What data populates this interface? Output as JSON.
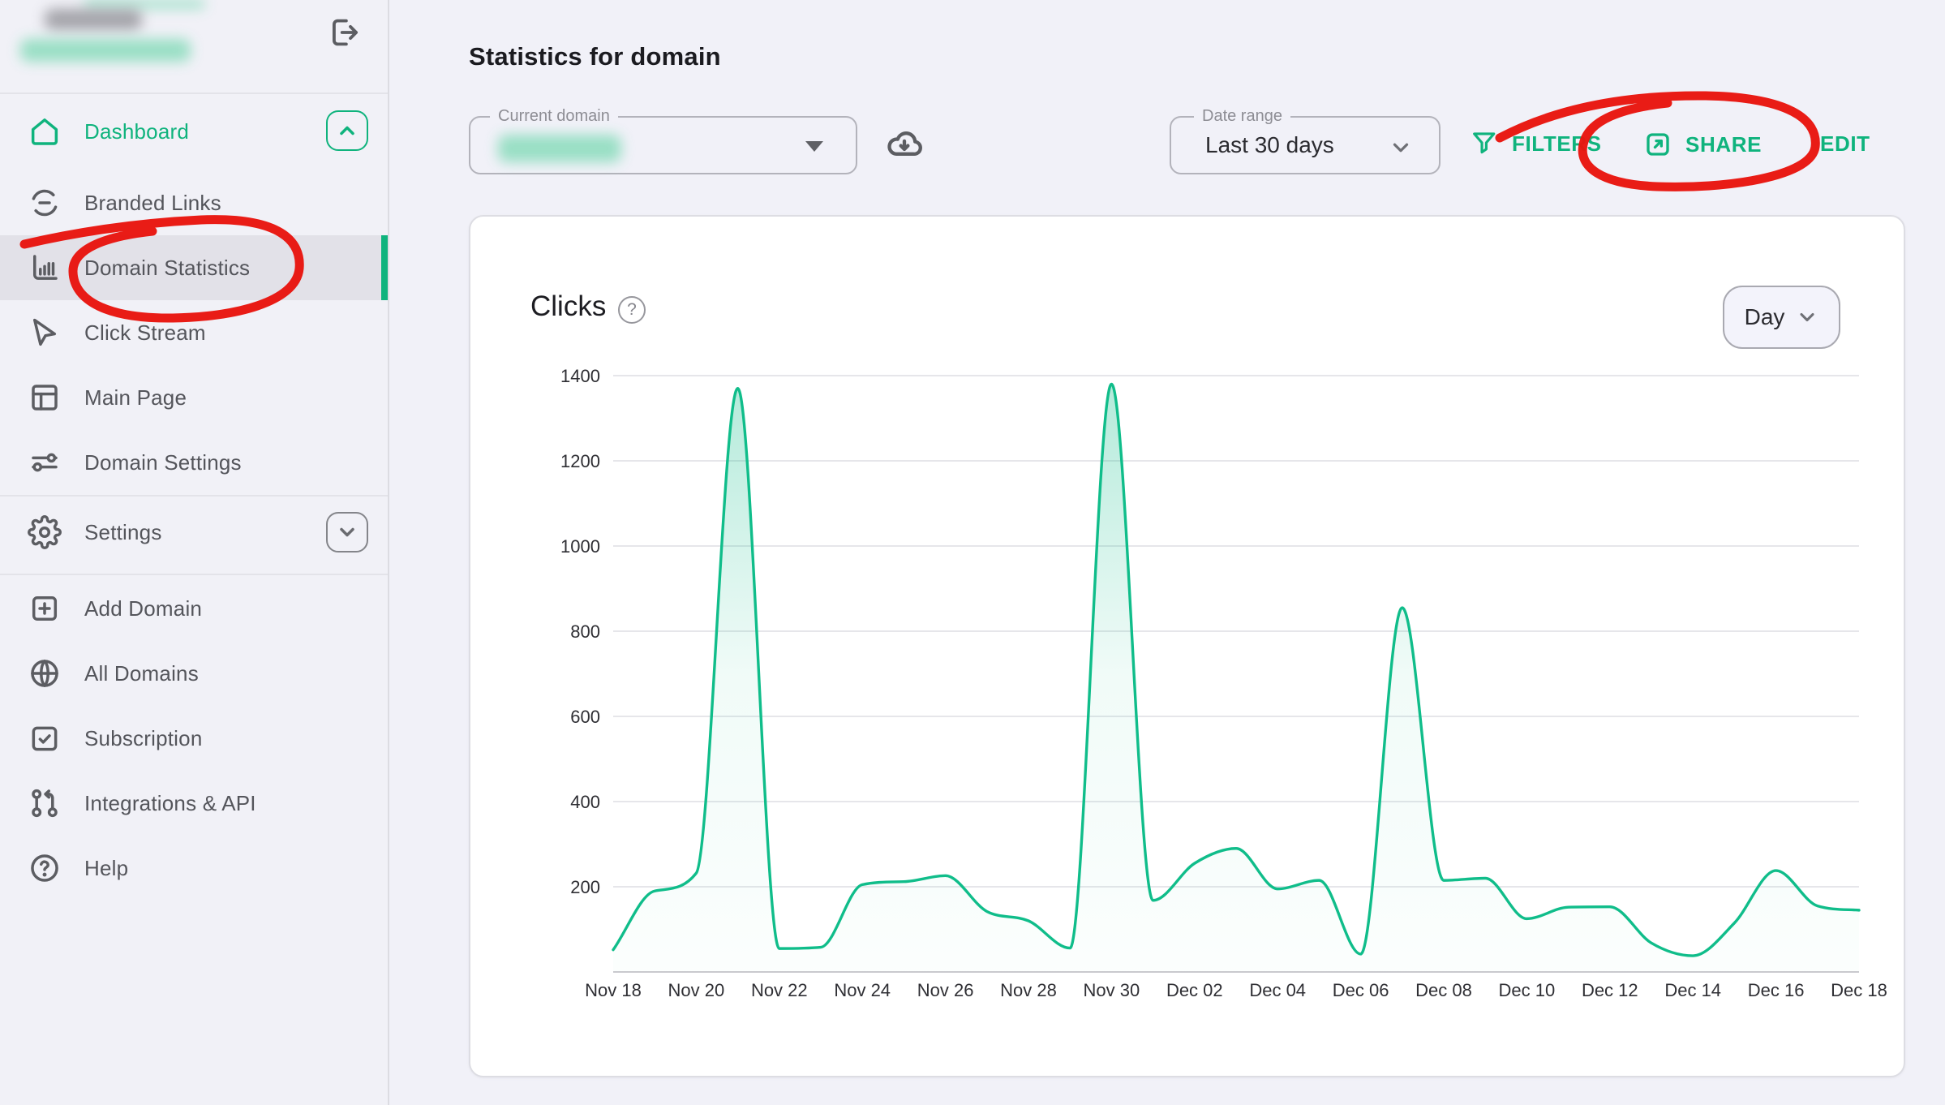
{
  "colors": {
    "accent": "#0fb37d",
    "chart_line": "#10bd8a",
    "annotation_red": "#e8150e",
    "page_bg": "#f1f1f8",
    "active_item_bg": "#e2e1e8"
  },
  "sidebar": {
    "user": {
      "name_blurred": true,
      "email_blurred": true
    },
    "dashboard": {
      "label": "Dashboard"
    },
    "items": [
      {
        "label": "Branded Links",
        "icon": "link-icon"
      },
      {
        "label": "Domain Statistics",
        "icon": "bar-chart-icon",
        "active": true,
        "annotated": "red-circle"
      },
      {
        "label": "Click Stream",
        "icon": "cursor-icon"
      },
      {
        "label": "Main Page",
        "icon": "layout-icon"
      },
      {
        "label": "Domain Settings",
        "icon": "sliders-icon"
      }
    ],
    "settings": {
      "label": "Settings"
    },
    "bottom_items": [
      {
        "label": "Add Domain",
        "icon": "plus-square-icon"
      },
      {
        "label": "All Domains",
        "icon": "globe-icon"
      },
      {
        "label": "Subscription",
        "icon": "calendar-check-icon"
      },
      {
        "label": "Integrations & API",
        "icon": "integrations-icon"
      },
      {
        "label": "Help",
        "icon": "help-icon"
      }
    ]
  },
  "header": {
    "title": "Statistics for domain",
    "current_domain": {
      "label": "Current domain",
      "value_blurred": true
    },
    "date_range": {
      "label": "Date range",
      "value": "Last 30 days"
    },
    "actions": {
      "filters": "FILTERS",
      "share": "SHARE",
      "edit": "EDIT"
    }
  },
  "card": {
    "title": "Clicks",
    "help_glyph": "?",
    "interval_label": "Day"
  },
  "annotations": {
    "color": "#e8150e",
    "targets": [
      "sidebar-item-domain-statistics",
      "share-button"
    ]
  },
  "chart_data": {
    "type": "line",
    "title": "Clicks",
    "xlabel": "",
    "ylabel": "",
    "ylim": [
      0,
      1400
    ],
    "y_ticks": [
      200,
      400,
      600,
      800,
      1000,
      1200,
      1400
    ],
    "x_tick_step": 2,
    "grid": true,
    "legend": "none",
    "categories": [
      "Nov 18",
      "Nov 19",
      "Nov 20",
      "Nov 21",
      "Nov 22",
      "Nov 23",
      "Nov 24",
      "Nov 25",
      "Nov 26",
      "Nov 27",
      "Nov 28",
      "Nov 29",
      "Nov 30",
      "Dec 01",
      "Dec 02",
      "Dec 03",
      "Dec 04",
      "Dec 05",
      "Dec 06",
      "Dec 07",
      "Dec 08",
      "Dec 09",
      "Dec 10",
      "Dec 11",
      "Dec 12",
      "Dec 13",
      "Dec 14",
      "Dec 15",
      "Dec 16",
      "Dec 17",
      "Dec 18"
    ],
    "series": [
      {
        "name": "Clicks",
        "values": [
          52,
          190,
          232,
          1370,
          55,
          58,
          205,
          212,
          226,
          142,
          120,
          56,
          1380,
          168,
          255,
          290,
          195,
          215,
          42,
          855,
          215,
          220,
          125,
          152,
          153,
          68,
          38,
          115,
          238,
          155,
          145
        ]
      }
    ]
  }
}
